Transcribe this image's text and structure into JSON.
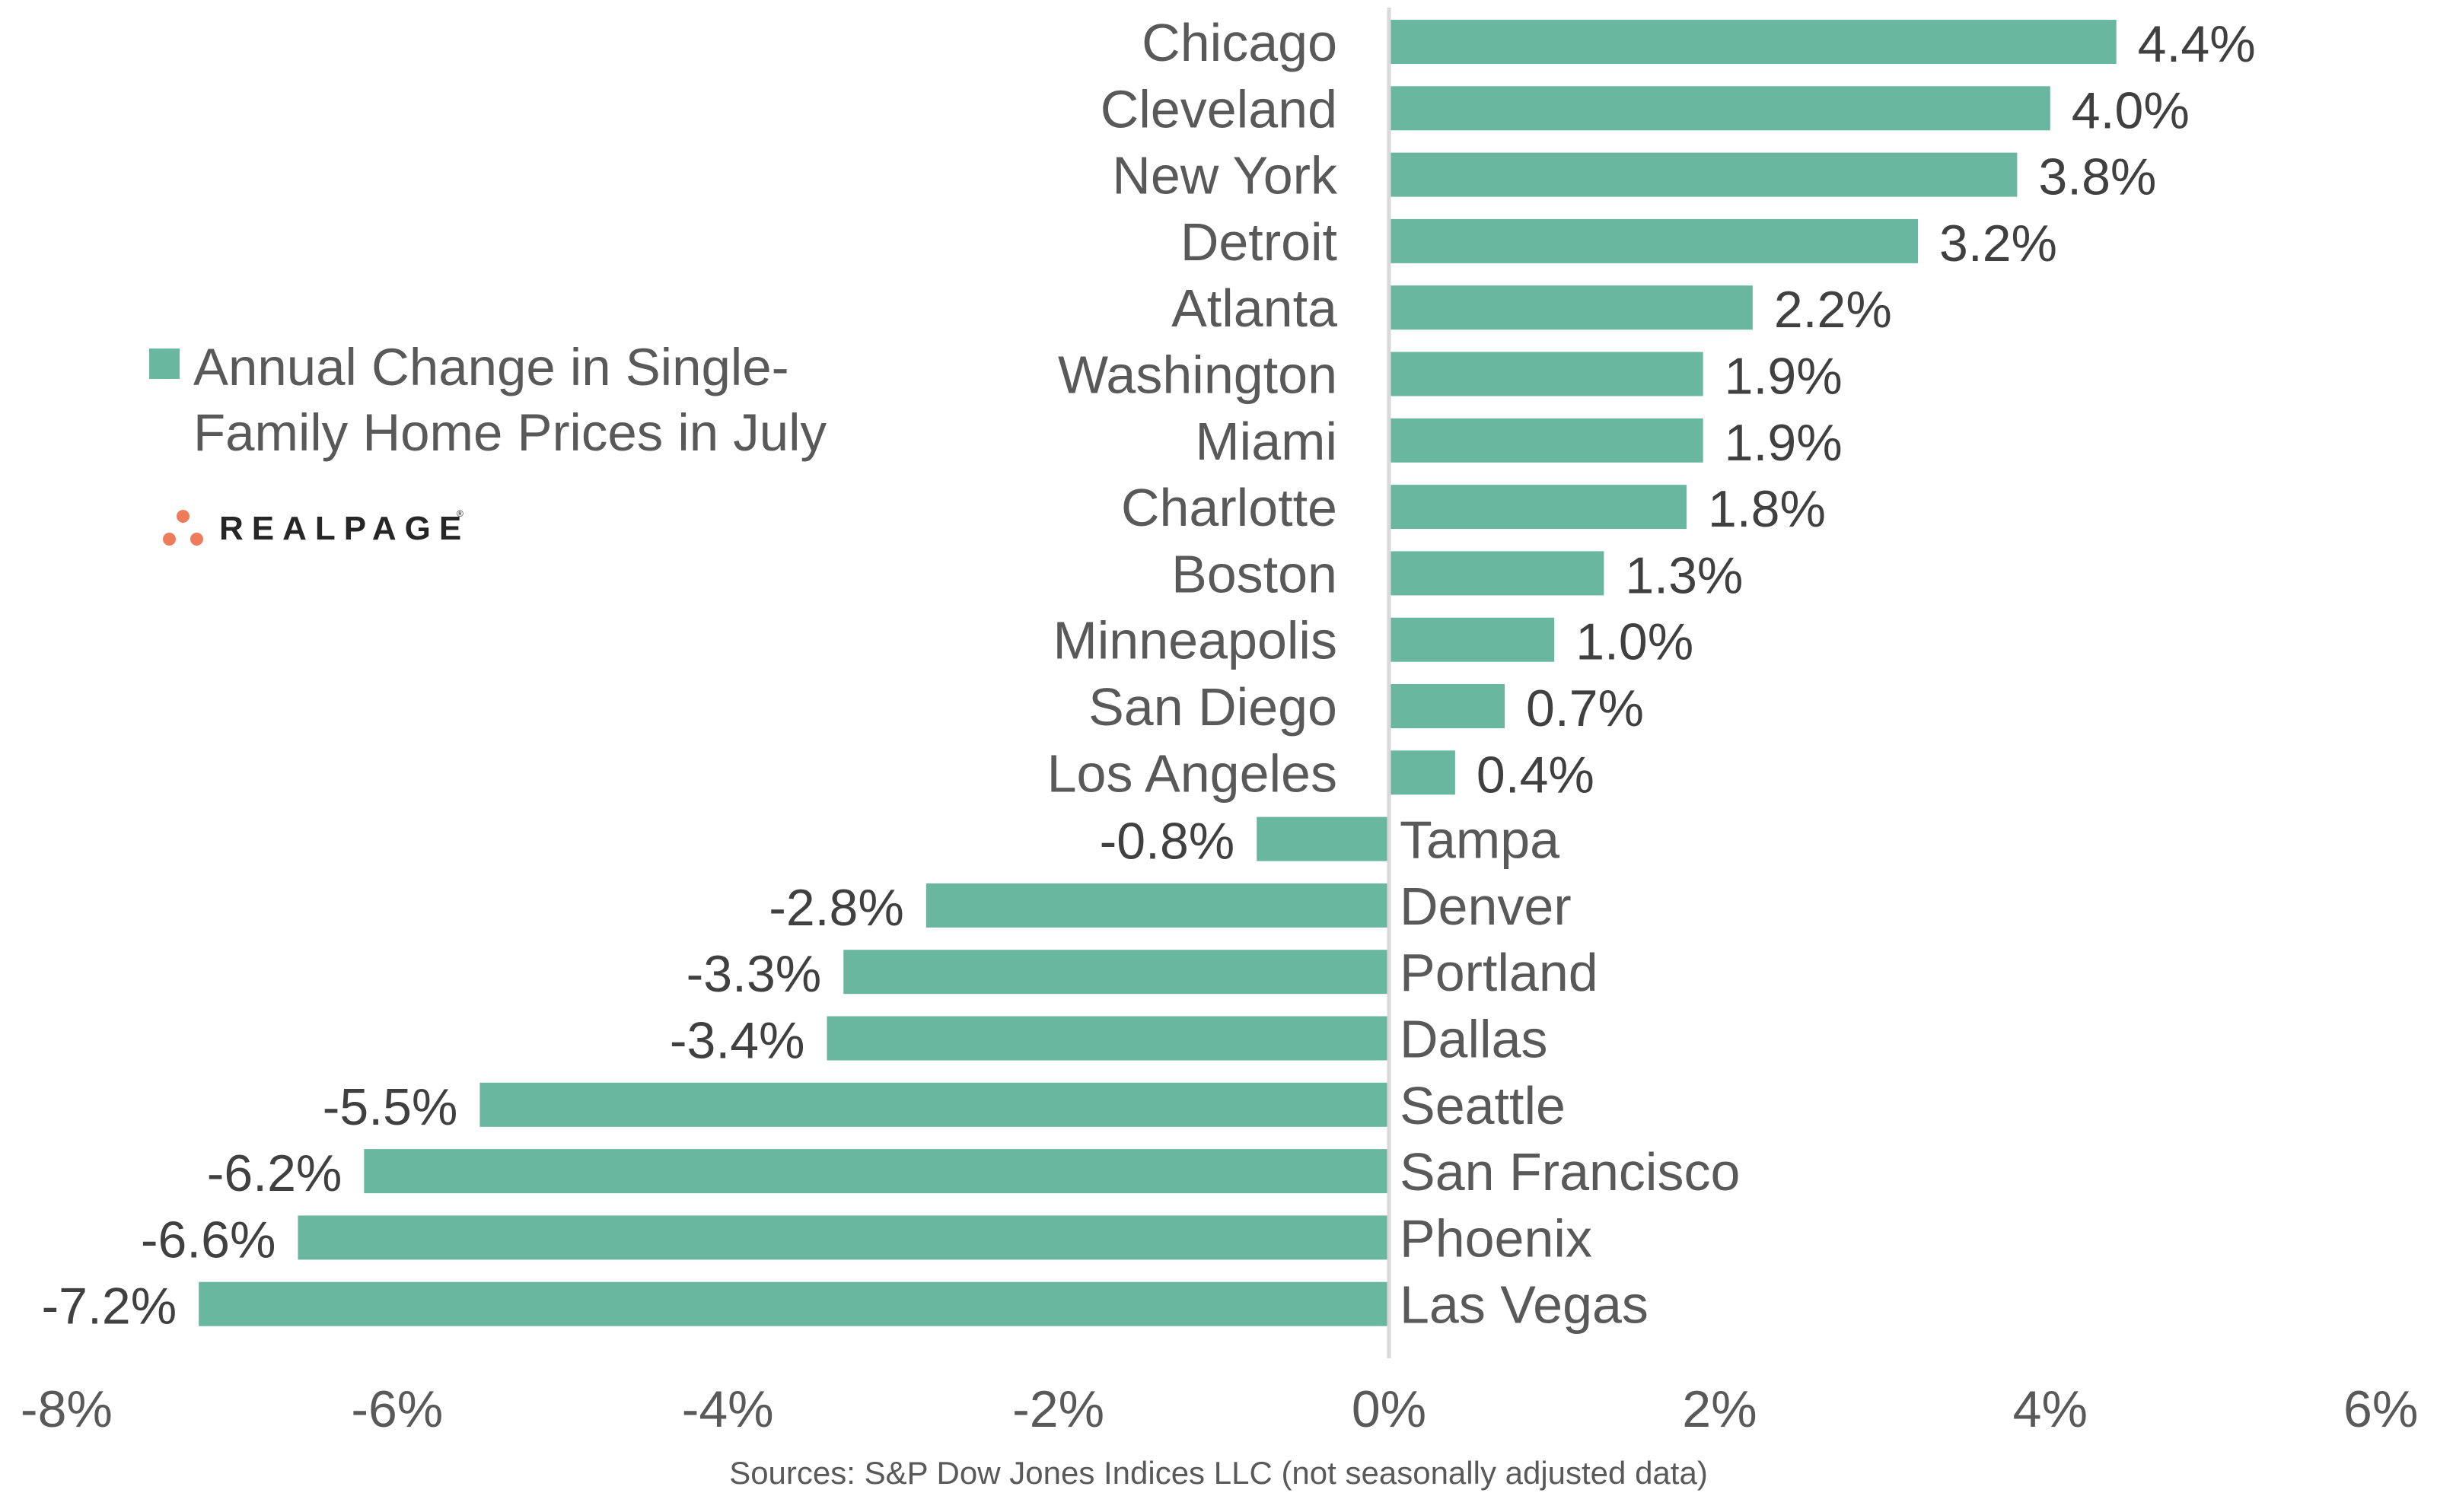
{
  "chart_data": {
    "type": "bar",
    "orientation": "horizontal",
    "categories": [
      "Chicago",
      "Cleveland",
      "New York",
      "Detroit",
      "Atlanta",
      "Washington",
      "Miami",
      "Charlotte",
      "Boston",
      "Minneapolis",
      "San Diego",
      "Los Angeles",
      "Tampa",
      "Denver",
      "Portland",
      "Dallas",
      "Seattle",
      "San Francisco",
      "Phoenix",
      "Las Vegas"
    ],
    "values": [
      4.4,
      4.0,
      3.8,
      3.2,
      2.2,
      1.9,
      1.9,
      1.8,
      1.3,
      1.0,
      0.7,
      0.4,
      -0.8,
      -2.8,
      -3.3,
      -3.4,
      -5.5,
      -6.2,
      -6.6,
      -7.2
    ],
    "value_labels": [
      "4.4%",
      "4.0%",
      "3.8%",
      "3.2%",
      "2.2%",
      "1.9%",
      "1.9%",
      "1.8%",
      "1.3%",
      "1.0%",
      "0.7%",
      "0.4%",
      "-0.8%",
      "-2.8%",
      "-3.3%",
      "-3.4%",
      "-5.5%",
      "-6.2%",
      "-6.6%",
      "-7.2%"
    ],
    "series": [
      {
        "name": "Annual Change in Single-Family Home Prices in July",
        "color": "#69B79E"
      }
    ],
    "xlim": [
      -8,
      6
    ],
    "xticks": [
      -8,
      -6,
      -4,
      -2,
      0,
      2,
      4,
      6
    ],
    "xtick_labels": [
      "-8%",
      "-6%",
      "-4%",
      "-2%",
      "0%",
      "2%",
      "4%",
      "6%"
    ],
    "title": "",
    "xlabel": "",
    "ylabel": "",
    "grid": false,
    "legend_position": "left"
  },
  "legend": {
    "line1": "Annual Change in Single-",
    "line2": "Family Home Prices in July"
  },
  "logo": {
    "text": "REALPAGE",
    "registered": "®",
    "dot_color": "#EE7B5A"
  },
  "source": "Sources: S&P Dow Jones Indices LLC (not seasonally adjusted data)",
  "colors": {
    "bar": "#69B79E",
    "axis": "#D9D9D9",
    "label": "#595959",
    "value": "#404040"
  }
}
